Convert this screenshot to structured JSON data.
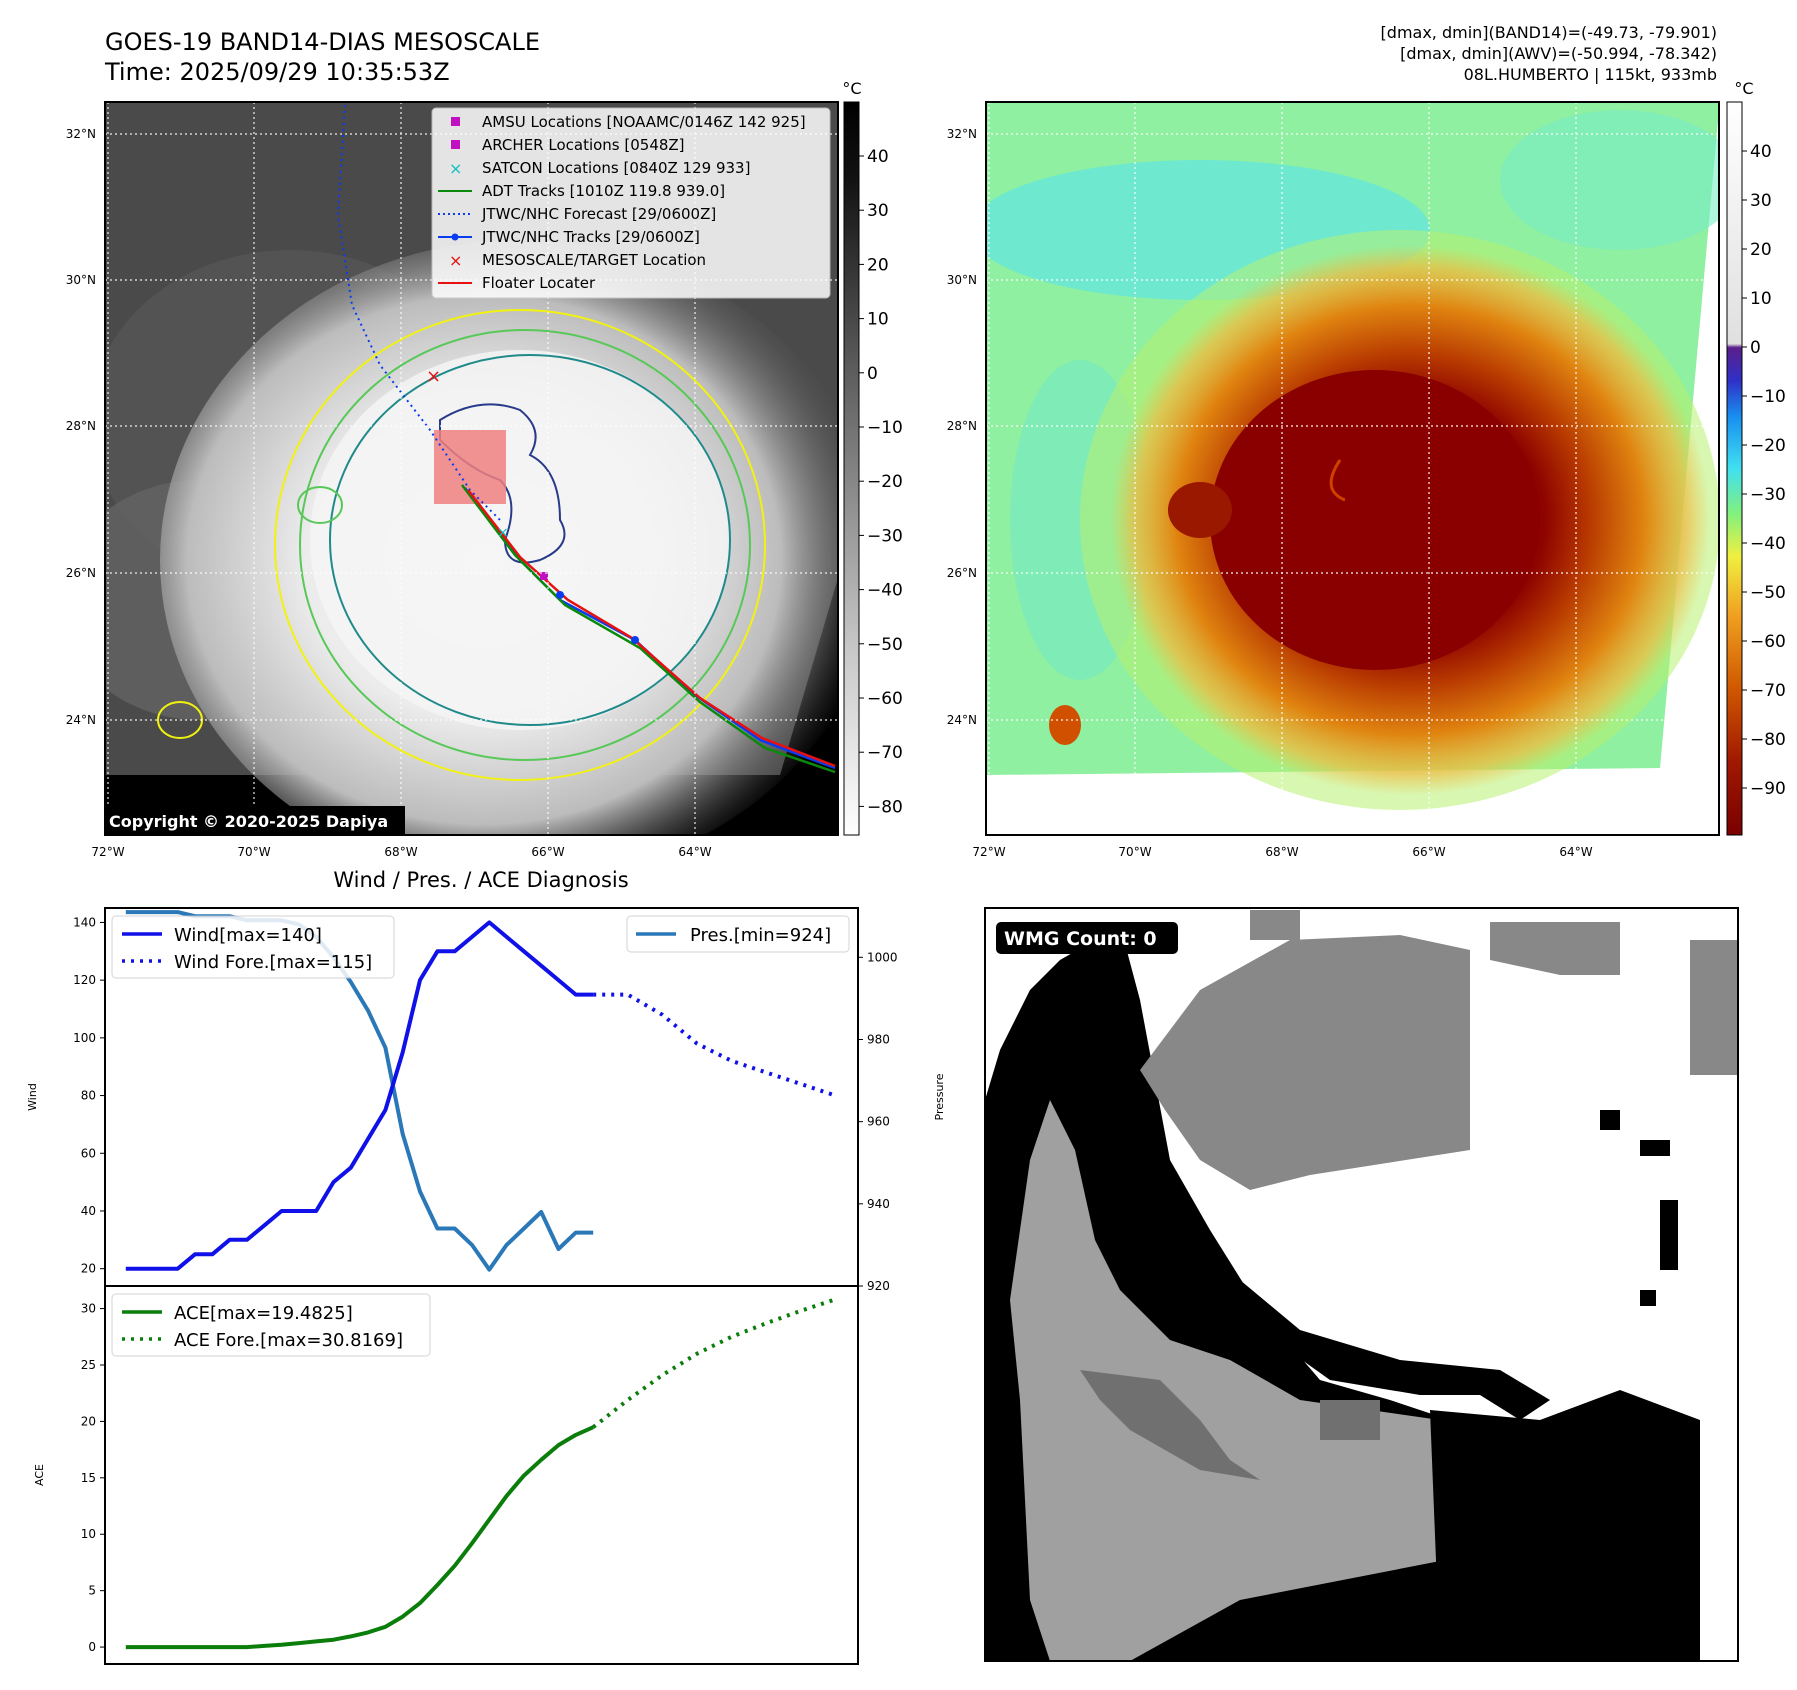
{
  "header": {
    "title_line1": "GOES-19 BAND14-DIAS MESOSCALE",
    "title_line2": "Time: 2025/09/29 10:35:53Z",
    "info_line1": "[dmax, dmin](BAND14)=(-49.73, -79.901)",
    "info_line2": "[dmax, dmin](AWV)=(-50.994, -78.342)",
    "info_line3": "08L.HUMBERTO | 115kt, 933mb"
  },
  "colors": {
    "wind": "#1010e8",
    "pressure": "#2a78b8",
    "ace": "#0a7d0a",
    "jtwc_track": "#0a3cf0",
    "adt_track": "#0a8a0a",
    "floater": "#e81010",
    "amsu": "#c010c0",
    "satcon": "#10c0c0",
    "contour_yellow": "#f2f210",
    "contour_green": "#58c858",
    "contour_teal": "#208a8a",
    "contour_navy": "#283a8a"
  },
  "map_ir": {
    "unit": "°C",
    "colorbar_ticks": [
      "40",
      "30",
      "20",
      "10",
      "0",
      "−10",
      "−20",
      "−30",
      "−40",
      "−50",
      "−60",
      "−70",
      "−80"
    ],
    "lat_labels": [
      "32°N",
      "30°N",
      "28°N",
      "26°N",
      "24°N"
    ],
    "lon_labels": [
      "72°W",
      "70°W",
      "68°W",
      "66°W",
      "64°W"
    ],
    "copyright": "Copyright © 2020-2025 Dapiya",
    "legend": [
      {
        "label": "AMSU Locations [NOAAMC/0146Z 142 925]",
        "marker": "square",
        "color": "#c010c0"
      },
      {
        "label": "ARCHER Locations [0548Z]",
        "marker": "square",
        "color": "#c010c0"
      },
      {
        "label": "SATCON Locations [0840Z 129 933]",
        "marker": "x",
        "color": "#10c0c0"
      },
      {
        "label": "ADT Tracks [1010Z 119.8 939.0]",
        "marker": "line",
        "color": "#0a8a0a"
      },
      {
        "label": "JTWC/NHC Forecast [29/0600Z]",
        "marker": "dotted",
        "color": "#0a3cf0"
      },
      {
        "label": "JTWC/NHC Tracks [29/0600Z]",
        "marker": "line-dot",
        "color": "#0a3cf0"
      },
      {
        "label": "MESOSCALE/TARGET Location",
        "marker": "x",
        "color": "#e81010"
      },
      {
        "label": "Floater Locater",
        "marker": "line",
        "color": "#e81010"
      }
    ]
  },
  "map_awv": {
    "unit": "°C",
    "colorbar_ticks": [
      "40",
      "30",
      "20",
      "10",
      "0",
      "−10",
      "−20",
      "−30",
      "−40",
      "−50",
      "−60",
      "−70",
      "−80",
      "−90"
    ],
    "lat_labels": [
      "32°N",
      "30°N",
      "28°N",
      "26°N",
      "24°N"
    ],
    "lon_labels": [
      "72°W",
      "70°W",
      "68°W",
      "66°W",
      "64°W"
    ]
  },
  "wmg": {
    "badge": "WMG Count: 0"
  },
  "chart_data": [
    {
      "type": "line",
      "title": "Wind / Pres. / ACE Diagnosis",
      "xlabel": "",
      "ylabel": "Wind",
      "ylabel_right": "Pressure",
      "ylim": [
        14,
        145
      ],
      "ylim_right": [
        920,
        1012
      ],
      "yticks": [
        20,
        40,
        60,
        80,
        100,
        120,
        140
      ],
      "yticks_right": [
        920,
        940,
        960,
        980,
        1000
      ],
      "x": [
        0,
        1,
        2,
        3,
        4,
        5,
        6,
        7,
        8,
        9,
        10,
        11,
        12,
        13,
        14,
        15,
        16,
        17,
        18,
        19,
        20,
        21,
        22,
        23,
        24,
        25,
        26,
        27,
        28,
        29,
        30,
        31,
        32,
        33,
        34,
        35,
        36,
        37,
        38,
        39,
        40
      ],
      "series": [
        {
          "name": "Wind[max=140]",
          "style": "solid",
          "x": [
            0,
            1,
            2,
            3,
            4,
            5,
            6,
            7,
            8,
            9,
            10,
            11,
            12,
            13,
            14,
            15,
            16,
            17,
            18,
            19,
            20,
            21,
            22,
            23,
            24,
            25,
            26,
            27
          ],
          "values": [
            20,
            20,
            20,
            20,
            25,
            25,
            30,
            30,
            35,
            40,
            40,
            40,
            50,
            55,
            65,
            75,
            95,
            120,
            130,
            130,
            135,
            140,
            135,
            130,
            125,
            120,
            115,
            115
          ]
        },
        {
          "name": "Wind Fore.[max=115]",
          "style": "dotted",
          "x": [
            27,
            29,
            31,
            33,
            35,
            37,
            39,
            41
          ],
          "values": [
            115,
            115,
            108,
            98,
            92,
            88,
            84,
            80
          ]
        },
        {
          "name": "Pres.[min=924]",
          "style": "solid",
          "axis": "right",
          "x": [
            0,
            1,
            2,
            3,
            4,
            5,
            6,
            7,
            8,
            9,
            10,
            11,
            12,
            13,
            14,
            15,
            16,
            17,
            18,
            19,
            20,
            21,
            22,
            23,
            24,
            25,
            26,
            27
          ],
          "values": [
            1011,
            1011,
            1011,
            1011,
            1010,
            1010,
            1010,
            1009,
            1009,
            1009,
            1008,
            1005,
            1000,
            994,
            987,
            978,
            957,
            943,
            934,
            934,
            930,
            924,
            930,
            934,
            938,
            929,
            933,
            933
          ]
        }
      ]
    },
    {
      "type": "line",
      "title": "",
      "xlabel": "",
      "ylabel": "ACE",
      "ylim": [
        -1.5,
        32
      ],
      "yticks": [
        0,
        5,
        10,
        15,
        20,
        25,
        30
      ],
      "series": [
        {
          "name": "ACE[max=19.4825]",
          "style": "solid",
          "x": [
            0,
            1,
            2,
            3,
            4,
            5,
            6,
            7,
            8,
            9,
            10,
            11,
            12,
            13,
            14,
            15,
            16,
            17,
            18,
            19,
            20,
            21,
            22,
            23,
            24,
            25,
            26,
            27
          ],
          "values": [
            0,
            0,
            0,
            0,
            0,
            0,
            0,
            0,
            0.1,
            0.2,
            0.35,
            0.5,
            0.65,
            0.95,
            1.3,
            1.8,
            2.7,
            3.9,
            5.5,
            7.2,
            9.2,
            11.3,
            13.4,
            15.2,
            16.6,
            17.9,
            18.8,
            19.4825
          ]
        },
        {
          "name": "ACE Fore.[max=30.8169]",
          "style": "dotted",
          "x": [
            27,
            29,
            31,
            33,
            35,
            37,
            39,
            41
          ],
          "values": [
            19.4825,
            21.9,
            24.1,
            26.0,
            27.5,
            28.7,
            29.8,
            30.8169
          ]
        }
      ]
    }
  ]
}
